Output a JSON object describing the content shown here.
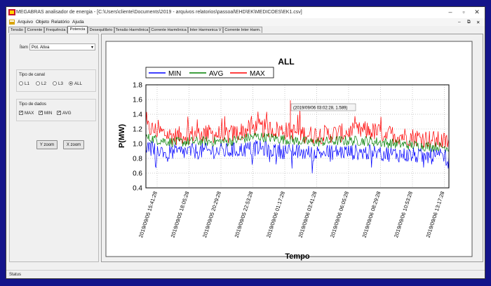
{
  "window": {
    "title": "MEGABRAS analisador de energia - [C:\\Users\\cliente\\Documents\\2019 - arquivos relatorios\\passoal\\EHD\\EK\\MEDICOES\\EK1.csv]",
    "controls": {
      "minimize": "–",
      "maximize": "▫",
      "close": "✕"
    }
  },
  "menu": {
    "items": [
      "Arquivo",
      "Objeto",
      "Relatório",
      "Ajuda"
    ],
    "right_controls": [
      "–",
      "⧉",
      "✕"
    ]
  },
  "tabs": [
    "Tensão",
    "Corrente",
    "Frequência",
    "Potencia",
    "Desequilíbrio",
    "Tensão Harmônica",
    "Corrente Harmônica",
    "Inter Harmonica V",
    "Corrente Inter Harm."
  ],
  "active_tab": "Potencia",
  "left_panel": {
    "item_label": "Ítem",
    "item_value": "Pot. Ativa",
    "channel_group_label": "Tipo de canal",
    "channel_options": [
      "L1",
      "L2",
      "L3",
      "ALL"
    ],
    "channel_selected": "ALL",
    "data_group_label": "Tipo de dados",
    "data_options": [
      "MAX",
      "MIN",
      "AVG"
    ],
    "data_checked": [
      true,
      true,
      true
    ],
    "y_zoom_label": "Y zoom",
    "x_zoom_label": "X zoom"
  },
  "status": {
    "text": "Status"
  },
  "colors": {
    "min": "#0000ff",
    "avg": "#008000",
    "max": "#ff0000",
    "background": "#14148a"
  },
  "chart_data": {
    "type": "line",
    "title": "ALL",
    "xlabel": "Tempo",
    "ylabel": "P(MW)",
    "ylim": [
      0.4,
      1.8
    ],
    "yticks": [
      0.4,
      0.6,
      0.8,
      1.0,
      1.2,
      1.4,
      1.6,
      1.8
    ],
    "grid": true,
    "legend_placement": "top",
    "x_tick_labels": [
      "2019/09/05 15:41:28",
      "2019/09/05 18:05:28",
      "2019/09/05 20:29:28",
      "2019/09/05 22:53:28",
      "2019/09/06 01:17:28",
      "2019/09/06 03:41:28",
      "2019/09/06 06:05:28",
      "2019/09/06 08:29:28",
      "2019/09/06 10:53:28",
      "2019/09/06 13:17:28"
    ],
    "annotation": "(2019/09/06  03:02:28, 1.589)",
    "series": [
      {
        "name": "MIN",
        "color": "#0000ff",
        "profile": [
          0.95,
          0.88,
          0.9,
          0.9,
          0.94,
          0.9,
          0.87,
          0.89,
          0.88,
          0.86,
          0.83,
          0.82
        ]
      },
      {
        "name": "AVG",
        "color": "#008000",
        "profile": [
          1.08,
          1.02,
          1.03,
          1.03,
          1.1,
          1.06,
          1.02,
          1.04,
          1.04,
          1.0,
          0.97,
          0.95
        ]
      },
      {
        "name": "MAX",
        "color": "#ff0000",
        "profile": [
          1.22,
          1.1,
          1.14,
          1.12,
          1.22,
          1.18,
          1.12,
          1.14,
          1.18,
          1.12,
          1.08,
          1.02
        ]
      }
    ]
  }
}
